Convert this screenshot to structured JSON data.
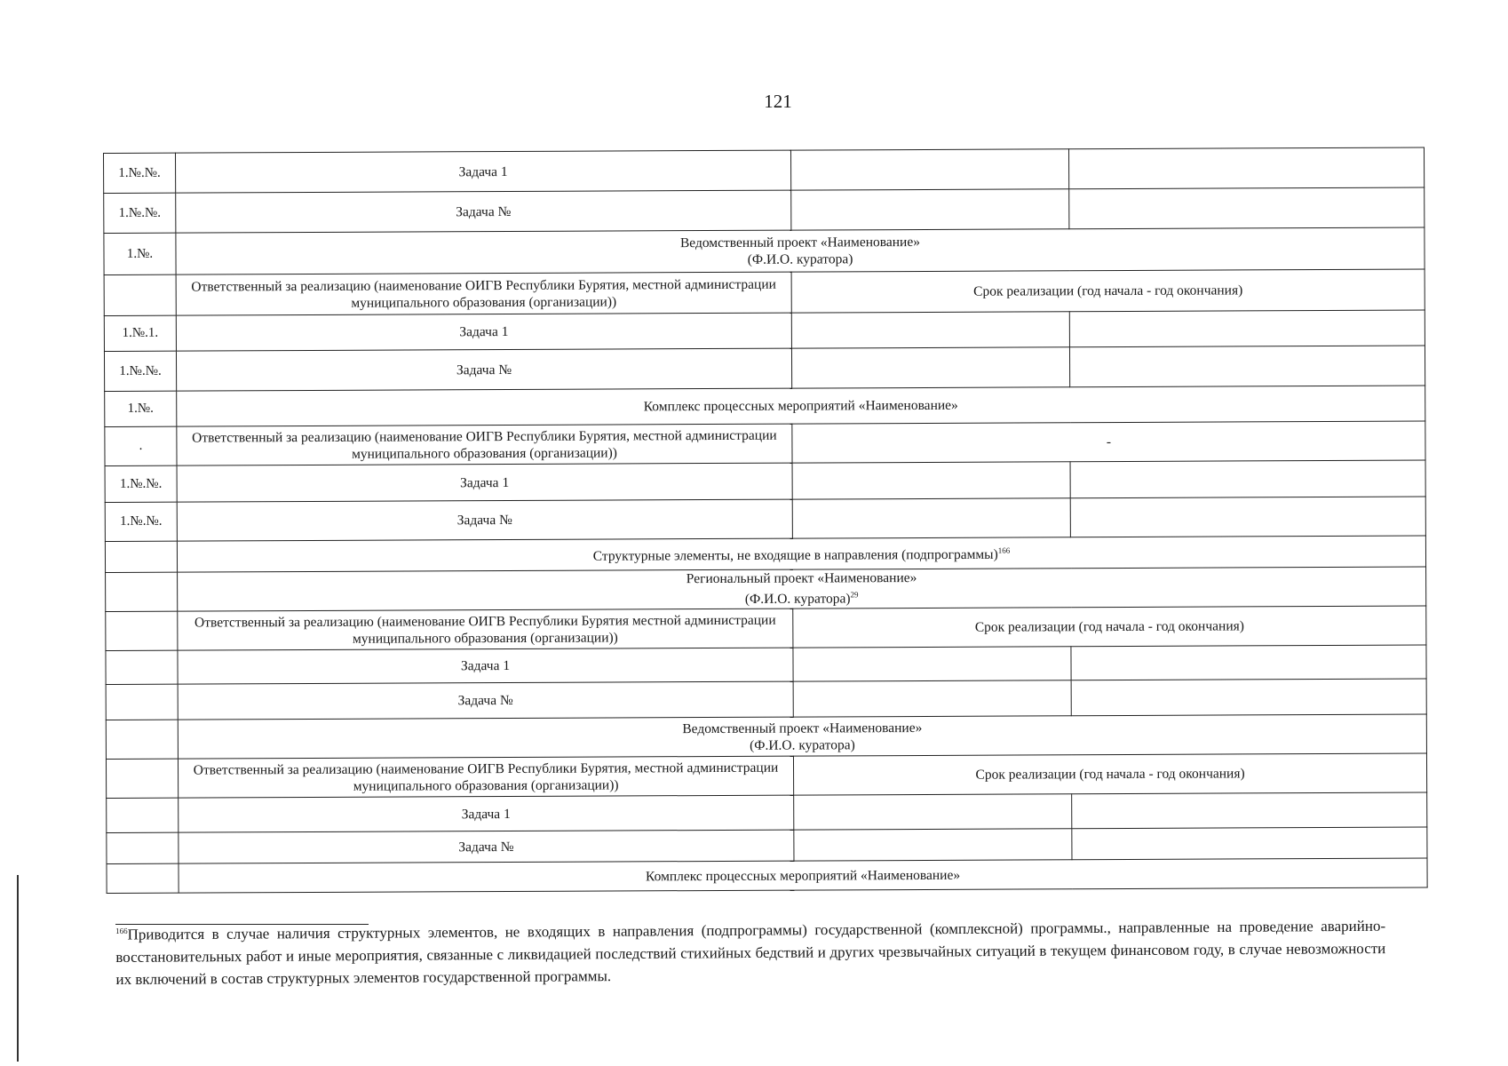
{
  "page_number": "121",
  "rows": [
    {
      "num": "1.№.№.",
      "text": "Задача 1",
      "type": "task"
    },
    {
      "num": "1.№.№.",
      "text": "Задача №",
      "type": "task"
    },
    {
      "num": "1.№.",
      "text": "Ведомственный проект «Наименование»",
      "sub": "(Ф.И.О. куратора)",
      "type": "header"
    },
    {
      "num": "",
      "text": "Ответственный за реализацию (наименование ОИГВ Республики Бурятия, местной администрации муниципального образования (организации))",
      "right": "Срок реализации (год начала - год окончания)",
      "type": "resp"
    },
    {
      "num": "1.№.1.",
      "text": "Задача 1",
      "type": "task"
    },
    {
      "num": "1.№.№.",
      "text": "Задача №",
      "type": "task"
    },
    {
      "num": "1.№.",
      "text": "Комплекс процессных мероприятий «Наименование»",
      "type": "header"
    },
    {
      "num": ".",
      "text": "Ответственный за реализацию (наименование ОИГВ Республики Бурятия, местной администрации муниципального образования (организации))",
      "right": "-",
      "type": "resp"
    },
    {
      "num": "1.№.№.",
      "text": "Задача 1",
      "type": "task"
    },
    {
      "num": "1.№.№.",
      "text": "Задача №",
      "type": "task"
    },
    {
      "num": "",
      "text": "Структурные элементы, не входящие в направления (подпрограммы)",
      "sup": "166",
      "type": "header"
    },
    {
      "num": "",
      "text": "Региональный проект «Наименование»",
      "sub": "(Ф.И.О. куратора)",
      "sub_sup": "29",
      "type": "header"
    },
    {
      "num": "",
      "text": "Ответственный за реализацию (наименование ОИГВ Республики Бурятия местной администрации муниципального образования (организации))",
      "right": "Срок реализации (год начала - год окончания)",
      "type": "resp"
    },
    {
      "num": "",
      "text": "Задача 1",
      "type": "task"
    },
    {
      "num": "",
      "text": "Задача №",
      "type": "task"
    },
    {
      "num": "",
      "text": "Ведомственный проект «Наименование»",
      "sub": "(Ф.И.О. куратора)",
      "type": "header"
    },
    {
      "num": "",
      "text": "Ответственный за реализацию (наименование ОИГВ Республики Бурятия, местной администрации муниципального образования (организации))",
      "right": "Срок реализации (год начала - год окончания)",
      "type": "resp"
    },
    {
      "num": "",
      "text": "Задача 1",
      "type": "task"
    },
    {
      "num": "",
      "text": "Задача №",
      "type": "task"
    },
    {
      "num": "",
      "text": "Комплекс процессных мероприятий «Наименование»",
      "type": "header"
    }
  ],
  "footnote": {
    "mark": "166",
    "text": "Приводится в случае наличия структурных элементов, не входящих в направления (подпрограммы) государственной (комплексной) программы., направленные на проведение аварийно-восстановительных работ и иные мероприятия, связанные с ликвидацией последствий стихийных бедствий и других чрезвычайных ситуаций в текущем финансовом году, в случае невозможности их включений в состав структурных элементов государственной программы."
  }
}
